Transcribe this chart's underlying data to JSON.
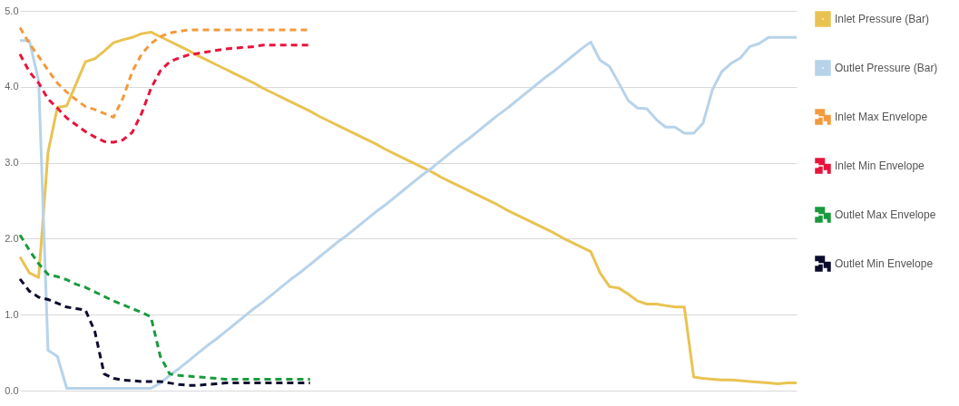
{
  "chart_data": {
    "type": "line",
    "categories": [
      null,
      null,
      null,
      null,
      null,
      null,
      null,
      null,
      null,
      null,
      null,
      null,
      null,
      null,
      null,
      null,
      null,
      null,
      null,
      null,
      null,
      null,
      null,
      null,
      null,
      null,
      null,
      null,
      null,
      null,
      null,
      null,
      null,
      null,
      null,
      null,
      null,
      null,
      null,
      null,
      null,
      null,
      null,
      null,
      null,
      null,
      null,
      null,
      null,
      null,
      null,
      null,
      null,
      null,
      null,
      null,
      null,
      null,
      null,
      null,
      null,
      null,
      null,
      null,
      null,
      null,
      null,
      null,
      null,
      null,
      null,
      null,
      null,
      null,
      null,
      null,
      null,
      null,
      null,
      null,
      null,
      null,
      null,
      null
    ],
    "series": [
      {
        "name": "Inlet Pressure (Bar)",
        "color": "#e9c352",
        "line_style": "solid",
        "values": [
          1.76,
          1.55,
          1.49,
          3.14,
          3.73,
          3.75,
          4.04,
          4.33,
          4.37,
          4.47,
          4.58,
          4.62,
          4.65,
          4.7,
          4.72,
          4.66,
          4.6,
          4.54,
          4.48,
          4.41,
          4.35,
          4.29,
          4.23,
          4.17,
          4.11,
          4.05,
          3.98,
          3.92,
          3.86,
          3.8,
          3.74,
          3.68,
          3.61,
          3.55,
          3.49,
          3.43,
          3.37,
          3.31,
          3.25,
          3.18,
          3.12,
          3.06,
          3.0,
          2.94,
          2.88,
          2.81,
          2.75,
          2.69,
          2.63,
          2.57,
          2.51,
          2.45,
          2.38,
          2.32,
          2.26,
          2.2,
          2.14,
          2.08,
          2.01,
          1.95,
          1.89,
          1.83,
          1.55,
          1.37,
          1.35,
          1.27,
          1.18,
          1.14,
          1.14,
          1.12,
          1.1,
          1.1,
          0.18,
          0.16,
          0.15,
          0.14,
          0.14,
          0.13,
          0.12,
          0.11,
          0.1,
          0.09,
          0.1,
          0.1
        ]
      },
      {
        "name": "Outlet Pressure (Bar)",
        "color": "#b7d3ea",
        "line_style": "solid",
        "values": [
          4.61,
          4.61,
          4.08,
          0.53,
          0.45,
          0.03,
          0.03,
          0.03,
          0.03,
          0.03,
          0.03,
          0.03,
          0.03,
          0.03,
          0.03,
          0.1,
          0.2,
          0.29,
          0.39,
          0.49,
          0.59,
          0.68,
          0.78,
          0.88,
          0.98,
          1.08,
          1.17,
          1.27,
          1.37,
          1.47,
          1.56,
          1.66,
          1.76,
          1.86,
          1.96,
          2.05,
          2.15,
          2.25,
          2.35,
          2.44,
          2.54,
          2.64,
          2.74,
          2.84,
          2.93,
          3.03,
          3.13,
          3.23,
          3.32,
          3.42,
          3.52,
          3.62,
          3.71,
          3.81,
          3.91,
          4.01,
          4.11,
          4.2,
          4.3,
          4.4,
          4.5,
          4.59,
          4.35,
          4.27,
          4.05,
          3.82,
          3.72,
          3.71,
          3.57,
          3.47,
          3.47,
          3.39,
          3.39,
          3.52,
          3.96,
          4.2,
          4.31,
          4.38,
          4.53,
          4.57,
          4.65,
          4.65,
          4.65,
          4.65
        ]
      },
      {
        "name": "Inlet Max Envelope",
        "color": "#f39a3c",
        "line_style": "dashed",
        "values": [
          4.78,
          4.57,
          4.4,
          4.22,
          4.05,
          3.93,
          3.83,
          3.74,
          3.7,
          3.65,
          3.6,
          3.85,
          4.2,
          4.43,
          4.57,
          4.66,
          4.71,
          4.73,
          4.75,
          4.75,
          4.75,
          4.75,
          4.75,
          4.75,
          4.75,
          4.75,
          4.75,
          4.75,
          4.75,
          4.75,
          4.75,
          4.75,
          null,
          null,
          null,
          null,
          null,
          null,
          null,
          null,
          null,
          null,
          null,
          null,
          null,
          null,
          null,
          null,
          null,
          null,
          null,
          null,
          null,
          null,
          null,
          null,
          null,
          null,
          null,
          null,
          null,
          null,
          null,
          null,
          null,
          null,
          null,
          null,
          null,
          null,
          null,
          null,
          null,
          null,
          null,
          null,
          null,
          null,
          null,
          null,
          null,
          null,
          null,
          null
        ]
      },
      {
        "name": "Inlet Min Envelope",
        "color": "#e8143c",
        "line_style": "dashed",
        "values": [
          4.43,
          4.2,
          4.05,
          3.84,
          3.72,
          3.59,
          3.5,
          3.41,
          3.34,
          3.28,
          3.27,
          3.3,
          3.4,
          3.65,
          3.98,
          4.21,
          4.33,
          4.38,
          4.42,
          4.44,
          4.46,
          4.48,
          4.5,
          4.51,
          4.52,
          4.53,
          4.55,
          4.55,
          4.55,
          4.55,
          4.55,
          4.55,
          null,
          null,
          null,
          null,
          null,
          null,
          null,
          null,
          null,
          null,
          null,
          null,
          null,
          null,
          null,
          null,
          null,
          null,
          null,
          null,
          null,
          null,
          null,
          null,
          null,
          null,
          null,
          null,
          null,
          null,
          null,
          null,
          null,
          null,
          null,
          null,
          null,
          null,
          null,
          null,
          null,
          null,
          null,
          null,
          null,
          null,
          null,
          null,
          null,
          null,
          null,
          null
        ]
      },
      {
        "name": "Outlet Max Envelope",
        "color": "#1a9a3c",
        "line_style": "dashed",
        "values": [
          2.05,
          1.85,
          1.67,
          1.53,
          1.5,
          1.46,
          1.4,
          1.36,
          1.3,
          1.24,
          1.18,
          1.13,
          1.08,
          1.03,
          0.97,
          0.45,
          0.22,
          0.2,
          0.19,
          0.18,
          0.17,
          0.16,
          0.15,
          0.15,
          0.15,
          0.15,
          0.15,
          0.15,
          0.15,
          0.15,
          0.15,
          0.15,
          null,
          null,
          null,
          null,
          null,
          null,
          null,
          null,
          null,
          null,
          null,
          null,
          null,
          null,
          null,
          null,
          null,
          null,
          null,
          null,
          null,
          null,
          null,
          null,
          null,
          null,
          null,
          null,
          null,
          null,
          null,
          null,
          null,
          null,
          null,
          null,
          null,
          null,
          null,
          null,
          null,
          null,
          null,
          null,
          null,
          null,
          null,
          null,
          null,
          null,
          null,
          null
        ]
      },
      {
        "name": "Outlet Min Envelope",
        "color": "#0b0b2e",
        "line_style": "dashed",
        "values": [
          1.47,
          1.31,
          1.23,
          1.2,
          1.15,
          1.1,
          1.08,
          1.06,
          0.78,
          0.22,
          0.16,
          0.14,
          0.13,
          0.12,
          0.12,
          0.12,
          0.1,
          0.08,
          0.07,
          0.07,
          0.08,
          0.09,
          0.1,
          0.1,
          0.1,
          0.1,
          0.1,
          0.1,
          0.1,
          0.1,
          0.1,
          0.1,
          null,
          null,
          null,
          null,
          null,
          null,
          null,
          null,
          null,
          null,
          null,
          null,
          null,
          null,
          null,
          null,
          null,
          null,
          null,
          null,
          null,
          null,
          null,
          null,
          null,
          null,
          null,
          null,
          null,
          null,
          null,
          null,
          null,
          null,
          null,
          null,
          null,
          null,
          null,
          null,
          null,
          null,
          null,
          null,
          null,
          null,
          null,
          null,
          null,
          null,
          null,
          null
        ]
      }
    ],
    "ylim": [
      0,
      5
    ],
    "yticks": [
      {
        "value": 0,
        "label": "0.0"
      },
      {
        "value": 1,
        "label": "1.0"
      },
      {
        "value": 2,
        "label": "2.0"
      },
      {
        "value": 3,
        "label": "3.0"
      },
      {
        "value": 4,
        "label": "4.0"
      },
      {
        "value": 5,
        "label": "5.0"
      }
    ],
    "grid": "y",
    "legend": "top right",
    "tick_labels": "y"
  }
}
